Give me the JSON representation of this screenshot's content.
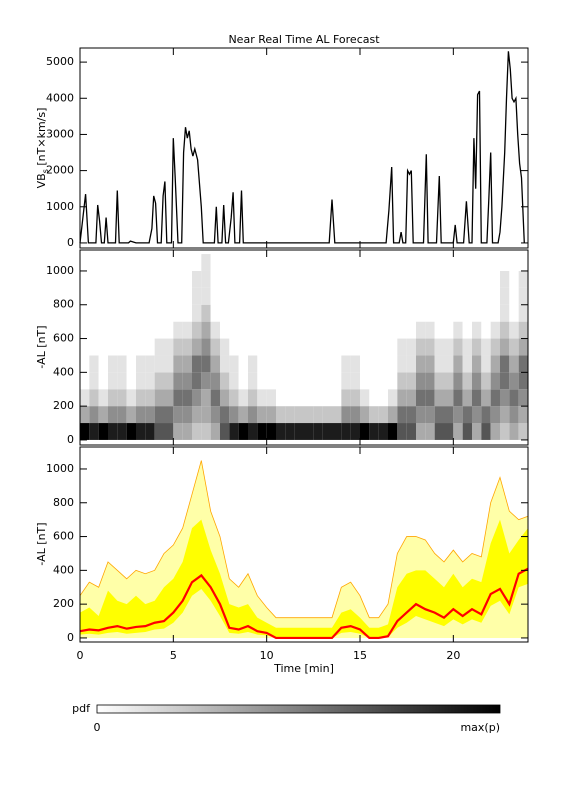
{
  "chart_data": [
    {
      "type": "line",
      "title": "Near Real Time AL Forecast",
      "ylabel": {
        "main": "VB",
        "sub": "s",
        "unit": " [nT×km/s]"
      },
      "color": "#000000",
      "xlim": [
        0,
        24
      ],
      "ylim": [
        -140,
        5390
      ],
      "yticks": [
        0,
        1000,
        2000,
        3000,
        4000,
        5000
      ],
      "x": [
        0,
        0.3,
        0.45,
        0.85,
        0.95,
        1.05,
        1.15,
        1.3,
        1.4,
        1.5,
        1.9,
        2.0,
        2.1,
        2.6,
        2.7,
        3.0,
        3.7,
        3.85,
        3.95,
        4.05,
        4.15,
        4.35,
        4.45,
        4.55,
        4.65,
        4.9,
        5.0,
        5.1,
        5.25,
        5.45,
        5.55,
        5.65,
        5.75,
        5.85,
        5.95,
        6.05,
        6.15,
        6.3,
        6.5,
        6.6,
        7.2,
        7.3,
        7.4,
        7.6,
        7.7,
        7.8,
        7.95,
        8.1,
        8.2,
        8.3,
        8.55,
        8.65,
        8.75,
        13.35,
        13.5,
        13.65,
        16.4,
        16.55,
        16.7,
        16.8,
        17.1,
        17.2,
        17.3,
        17.45,
        17.55,
        17.65,
        17.75,
        17.85,
        18.4,
        18.55,
        18.65,
        19.1,
        19.25,
        19.35,
        20.0,
        20.1,
        20.2,
        20.55,
        20.7,
        20.85,
        21.0,
        21.1,
        21.2,
        21.3,
        21.4,
        21.5,
        21.8,
        21.9,
        22.0,
        22.1,
        22.4,
        22.5,
        22.6,
        22.75,
        22.85,
        22.95,
        23.05,
        23.15,
        23.25,
        23.35,
        23.45,
        23.55,
        23.65,
        23.8
      ],
      "values": [
        0,
        1350,
        0,
        0,
        1050,
        600,
        0,
        0,
        700,
        0,
        0,
        1450,
        0,
        0,
        50,
        0,
        0,
        400,
        1300,
        1100,
        0,
        0,
        1300,
        1700,
        0,
        0,
        2900,
        1800,
        0,
        0,
        2500,
        3200,
        2900,
        3100,
        2600,
        2400,
        2600,
        2300,
        1000,
        0,
        0,
        1000,
        0,
        0,
        1050,
        0,
        0,
        700,
        1400,
        0,
        0,
        1450,
        0,
        0,
        1200,
        0,
        0,
        900,
        2100,
        0,
        0,
        300,
        0,
        0,
        2000,
        1900,
        2000,
        0,
        0,
        2450,
        0,
        0,
        1850,
        0,
        0,
        500,
        0,
        0,
        1150,
        0,
        0,
        2900,
        1500,
        4100,
        4200,
        0,
        0,
        1200,
        2500,
        0,
        0,
        300,
        1000,
        2500,
        4000,
        5300,
        4800,
        4000,
        3900,
        4000,
        3000,
        2200,
        1800,
        0
      ]
    },
    {
      "type": "heatmap",
      "ylabel": "-AL [nT]",
      "xlim": [
        0,
        24
      ],
      "ylim": [
        -30,
        1124
      ],
      "yticks": [
        0,
        200,
        400,
        600,
        800,
        1000
      ],
      "xbins": [
        0,
        0.5,
        1,
        1.5,
        2,
        2.5,
        3,
        3.5,
        4,
        4.5,
        5,
        5.5,
        6,
        6.5,
        7,
        7.5,
        8,
        8.5,
        9,
        9.5,
        10,
        10.5,
        11,
        11.5,
        12,
        12.5,
        13,
        13.5,
        14,
        14.5,
        15,
        15.5,
        16,
        16.5,
        17,
        17.5,
        18,
        18.5,
        19,
        19.5,
        20,
        20.5,
        21,
        21.5,
        22,
        22.5,
        23,
        23.5,
        24
      ],
      "ybins": [
        0,
        100,
        200,
        300,
        400,
        500,
        600,
        700,
        800,
        900,
        1000,
        1100
      ],
      "values": [
        [
          9,
          3,
          1,
          0,
          0,
          0,
          0,
          0,
          0,
          0,
          0
        ],
        [
          8,
          4,
          2,
          1,
          1,
          0,
          0,
          0,
          0,
          0,
          0
        ],
        [
          9,
          3,
          1,
          0,
          0,
          0,
          0,
          0,
          0,
          0,
          0
        ],
        [
          8,
          4,
          2,
          1,
          1,
          0,
          0,
          0,
          0,
          0,
          0
        ],
        [
          8,
          4,
          2,
          1,
          1,
          0,
          0,
          0,
          0,
          0,
          0
        ],
        [
          9,
          3,
          1,
          0,
          0,
          0,
          0,
          0,
          0,
          0,
          0
        ],
        [
          8,
          4,
          2,
          1,
          1,
          0,
          0,
          0,
          0,
          0,
          0
        ],
        [
          8,
          4,
          2,
          1,
          1,
          0,
          0,
          0,
          0,
          0,
          0
        ],
        [
          6,
          5,
          3,
          2,
          1,
          1,
          0,
          0,
          0,
          0,
          0
        ],
        [
          6,
          5,
          3,
          2,
          1,
          1,
          0,
          0,
          0,
          0,
          0
        ],
        [
          3,
          4,
          5,
          4,
          3,
          2,
          1,
          0,
          0,
          0,
          0
        ],
        [
          3,
          4,
          5,
          4,
          3,
          2,
          1,
          0,
          0,
          0,
          0
        ],
        [
          2,
          3,
          4,
          5,
          5,
          3,
          2,
          1,
          1,
          1,
          0
        ],
        [
          2,
          3,
          3,
          4,
          5,
          4,
          3,
          2,
          1,
          1,
          1
        ],
        [
          3,
          4,
          5,
          4,
          3,
          2,
          1,
          0,
          0,
          0,
          0
        ],
        [
          6,
          5,
          3,
          2,
          1,
          1,
          0,
          0,
          0,
          0,
          0
        ],
        [
          8,
          4,
          2,
          1,
          1,
          0,
          0,
          0,
          0,
          0,
          0
        ],
        [
          9,
          3,
          1,
          0,
          0,
          0,
          0,
          0,
          0,
          0,
          0
        ],
        [
          8,
          4,
          2,
          1,
          1,
          0,
          0,
          0,
          0,
          0,
          0
        ],
        [
          9,
          3,
          1,
          0,
          0,
          0,
          0,
          0,
          0,
          0,
          0
        ],
        [
          9,
          3,
          1,
          0,
          0,
          0,
          0,
          0,
          0,
          0,
          0
        ],
        [
          8,
          2,
          0,
          0,
          0,
          0,
          0,
          0,
          0,
          0,
          0
        ],
        [
          8,
          2,
          0,
          0,
          0,
          0,
          0,
          0,
          0,
          0,
          0
        ],
        [
          8,
          2,
          0,
          0,
          0,
          0,
          0,
          0,
          0,
          0,
          0
        ],
        [
          8,
          2,
          0,
          0,
          0,
          0,
          0,
          0,
          0,
          0,
          0
        ],
        [
          8,
          2,
          0,
          0,
          0,
          0,
          0,
          0,
          0,
          0,
          0
        ],
        [
          8,
          2,
          0,
          0,
          0,
          0,
          0,
          0,
          0,
          0,
          0
        ],
        [
          8,
          2,
          0,
          0,
          0,
          0,
          0,
          0,
          0,
          0,
          0
        ],
        [
          8,
          4,
          2,
          1,
          1,
          0,
          0,
          0,
          0,
          0,
          0
        ],
        [
          8,
          4,
          2,
          1,
          1,
          0,
          0,
          0,
          0,
          0,
          0
        ],
        [
          9,
          3,
          1,
          0,
          0,
          0,
          0,
          0,
          0,
          0,
          0
        ],
        [
          8,
          2,
          0,
          0,
          0,
          0,
          0,
          0,
          0,
          0,
          0
        ],
        [
          8,
          2,
          0,
          0,
          0,
          0,
          0,
          0,
          0,
          0,
          0
        ],
        [
          9,
          3,
          1,
          0,
          0,
          0,
          0,
          0,
          0,
          0,
          0
        ],
        [
          6,
          5,
          3,
          2,
          1,
          1,
          0,
          0,
          0,
          0,
          0
        ],
        [
          6,
          5,
          3,
          2,
          1,
          1,
          0,
          0,
          0,
          0,
          0
        ],
        [
          3,
          4,
          5,
          4,
          3,
          2,
          1,
          0,
          0,
          0,
          0
        ],
        [
          3,
          4,
          5,
          4,
          3,
          2,
          1,
          0,
          0,
          0,
          0
        ],
        [
          6,
          5,
          3,
          2,
          1,
          1,
          0,
          0,
          0,
          0,
          0
        ],
        [
          6,
          5,
          3,
          2,
          1,
          1,
          0,
          0,
          0,
          0,
          0
        ],
        [
          3,
          4,
          5,
          4,
          3,
          2,
          1,
          0,
          0,
          0,
          0
        ],
        [
          6,
          5,
          3,
          2,
          1,
          1,
          0,
          0,
          0,
          0,
          0
        ],
        [
          3,
          4,
          5,
          4,
          3,
          2,
          1,
          0,
          0,
          0,
          0
        ],
        [
          6,
          5,
          3,
          2,
          1,
          1,
          0,
          0,
          0,
          0,
          0
        ],
        [
          3,
          4,
          5,
          4,
          3,
          2,
          1,
          0,
          0,
          0,
          0
        ],
        [
          2,
          3,
          4,
          5,
          5,
          3,
          2,
          1,
          1,
          1,
          0
        ],
        [
          3,
          4,
          5,
          4,
          3,
          2,
          1,
          0,
          0,
          0,
          0
        ],
        [
          2,
          3,
          4,
          5,
          5,
          3,
          2,
          1,
          1,
          1,
          0
        ]
      ]
    },
    {
      "type": "band",
      "ylabel": "-AL [nT]",
      "xlabel": "Time [min]",
      "xlim": [
        0,
        24
      ],
      "xticks": [
        0,
        5,
        10,
        15,
        20
      ],
      "ylim": [
        -24,
        1130
      ],
      "yticks": [
        0,
        200,
        400,
        600,
        800,
        1000
      ],
      "x": [
        0,
        0.5,
        1,
        1.5,
        2,
        2.5,
        3,
        3.5,
        4,
        4.5,
        5,
        5.5,
        6,
        6.5,
        7,
        7.5,
        8,
        8.5,
        9,
        9.5,
        10,
        10.5,
        11,
        11.5,
        12,
        12.5,
        13,
        13.5,
        14,
        14.5,
        15,
        15.5,
        16,
        16.5,
        17,
        17.5,
        18,
        18.5,
        19,
        19.5,
        20,
        20.5,
        21,
        21.5,
        22,
        22.5,
        23,
        23.5,
        24
      ],
      "outer": {
        "color": "#ffffa8",
        "edge_color": "#ffa500",
        "upper": [
          250,
          330,
          300,
          450,
          400,
          350,
          400,
          380,
          400,
          500,
          550,
          650,
          850,
          1050,
          750,
          600,
          350,
          300,
          380,
          250,
          180,
          120,
          120,
          120,
          120,
          120,
          120,
          120,
          300,
          330,
          250,
          120,
          120,
          200,
          500,
          600,
          600,
          580,
          500,
          450,
          520,
          450,
          500,
          480,
          800,
          950,
          750,
          700,
          720
        ]
      },
      "inner": {
        "color": "#ffff00",
        "lower": [
          20,
          25,
          20,
          30,
          35,
          25,
          30,
          35,
          50,
          55,
          90,
          150,
          250,
          290,
          220,
          130,
          30,
          25,
          35,
          20,
          15,
          0,
          0,
          0,
          0,
          0,
          0,
          0,
          30,
          35,
          25,
          0,
          0,
          5,
          60,
          90,
          130,
          110,
          90,
          70,
          110,
          80,
          110,
          90,
          190,
          220,
          140,
          300,
          320
        ],
        "upper": [
          150,
          180,
          130,
          280,
          220,
          200,
          250,
          200,
          220,
          300,
          350,
          450,
          650,
          700,
          520,
          380,
          200,
          180,
          200,
          120,
          90,
          60,
          60,
          60,
          60,
          60,
          60,
          60,
          150,
          170,
          120,
          60,
          60,
          80,
          300,
          380,
          400,
          400,
          350,
          300,
          380,
          300,
          350,
          330,
          560,
          700,
          500,
          580,
          650
        ]
      },
      "median": {
        "color": "#ff0000",
        "values": [
          40,
          50,
          45,
          60,
          70,
          55,
          65,
          70,
          90,
          100,
          150,
          220,
          330,
          370,
          300,
          200,
          60,
          50,
          70,
          40,
          30,
          0,
          0,
          0,
          0,
          0,
          0,
          0,
          60,
          70,
          50,
          0,
          0,
          10,
          100,
          150,
          200,
          170,
          150,
          120,
          170,
          130,
          170,
          140,
          260,
          290,
          200,
          380,
          410
        ]
      }
    }
  ],
  "colorbar": {
    "label": "pdf",
    "min_label": "0",
    "max_label": "max(p)"
  }
}
